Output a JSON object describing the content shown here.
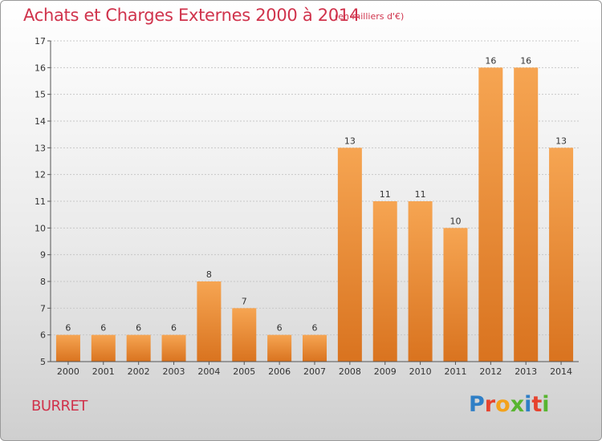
{
  "header": {
    "title": "Achats et Charges Externes 2000 à 2014",
    "subtitle": "(en milliers d'€)"
  },
  "footer": {
    "commune": "BURRET",
    "logo_letters": [
      "P",
      "r",
      "o",
      "x",
      "i",
      "t",
      "i"
    ],
    "logo_colors": [
      "#2f7fc6",
      "#e6432e",
      "#f3a21b",
      "#58b530",
      "#2f7fc6",
      "#e6432e",
      "#58b530"
    ]
  },
  "colors": {
    "bar_top": "#f6a552",
    "bar_bottom": "#d9731f",
    "title": "#d0334c",
    "grid": "#c8c8c8"
  },
  "chart_data": {
    "type": "bar",
    "categories": [
      "2000",
      "2001",
      "2002",
      "2003",
      "2004",
      "2005",
      "2006",
      "2007",
      "2008",
      "2009",
      "2010",
      "2011",
      "2012",
      "2013",
      "2014"
    ],
    "values": [
      6,
      6,
      6,
      6,
      8,
      7,
      6,
      6,
      13,
      11,
      11,
      10,
      16,
      16,
      13
    ],
    "ylim": [
      5,
      17
    ],
    "yticks": [
      "5",
      "6",
      "7",
      "8",
      "9",
      "10",
      "11",
      "12",
      "13",
      "14",
      "15",
      "16",
      "17"
    ],
    "grid": "horizontal",
    "xlabel": "",
    "ylabel": ""
  }
}
